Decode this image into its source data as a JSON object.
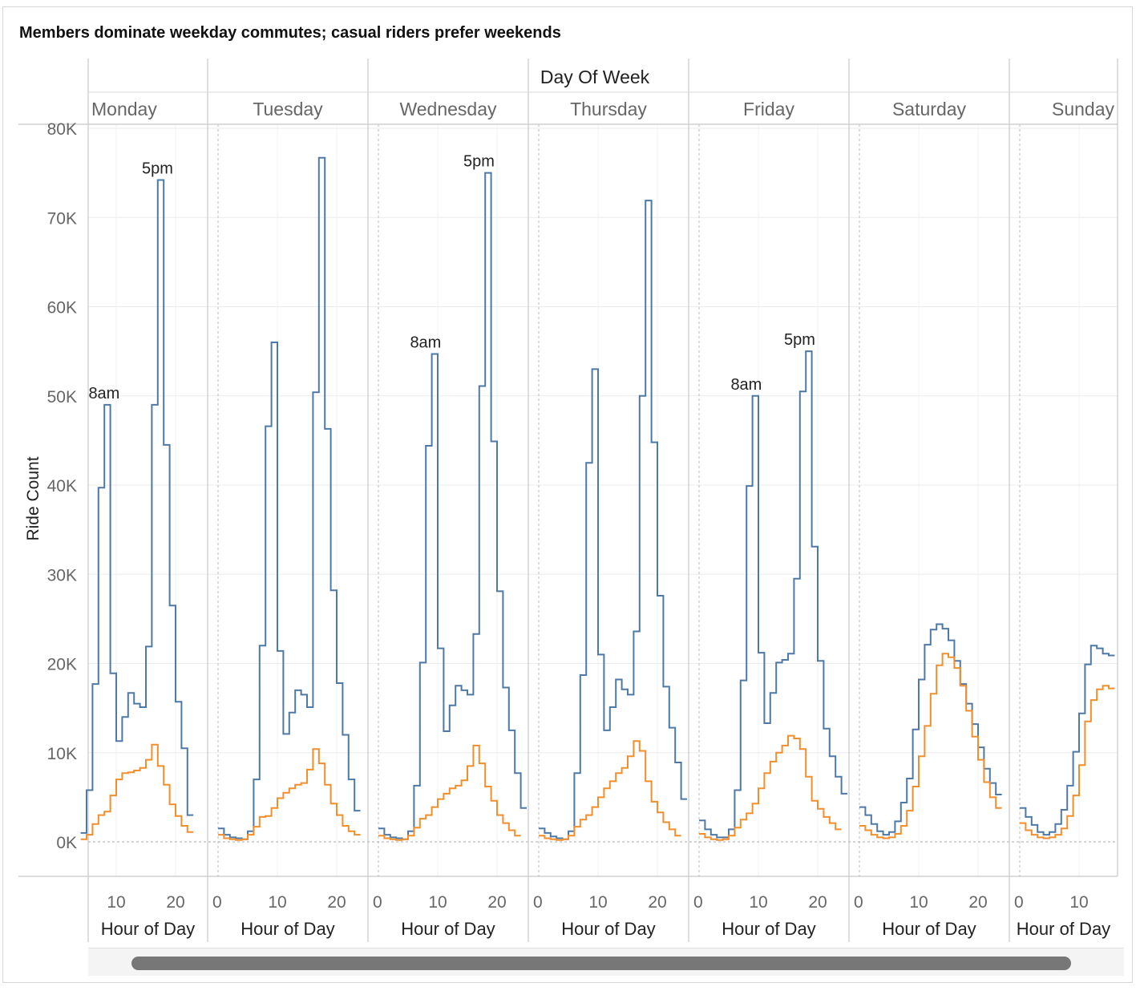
{
  "title": "Members dominate weekday commutes; casual riders prefer weekends",
  "chart_data": {
    "type": "line",
    "column_header": "Day Of Week",
    "panels": [
      "Monday",
      "Tuesday",
      "Wednesday",
      "Thursday",
      "Friday",
      "Saturday",
      "Sunday"
    ],
    "x_label": "Hour of Day",
    "y_label": "Ride Count",
    "y_ticks": [
      "0K",
      "10K",
      "20K",
      "30K",
      "40K",
      "50K",
      "60K",
      "70K",
      "80K"
    ],
    "x_ticks": [
      [
        "10",
        "20"
      ],
      [
        "0",
        "10",
        "20"
      ],
      [
        "0",
        "10",
        "20"
      ],
      [
        "0",
        "10",
        "20"
      ],
      [
        "0",
        "10",
        "20"
      ],
      [
        "0",
        "10",
        "20"
      ],
      [
        "0",
        "10"
      ]
    ],
    "ylim": [
      0,
      80000
    ],
    "colors": {
      "member": "#4e79a7",
      "casual": "#f28e2b"
    },
    "series": [
      {
        "values": [
          [
            1000,
            5800,
            17700,
            39700,
            49000,
            18900,
            11300,
            14000,
            16700,
            15500,
            15100,
            21900,
            49000,
            74200,
            44500,
            26500,
            15700,
            10500,
            3000
          ],
          [
            1500,
            800,
            500,
            400,
            300,
            1200,
            7000,
            22000,
            46600,
            56000,
            21400,
            12100,
            14500,
            17000,
            16500,
            15100,
            50400,
            76700,
            46300,
            28200,
            17800,
            12000,
            7000,
            3500
          ],
          [
            1500,
            800,
            500,
            400,
            300,
            1200,
            6300,
            20100,
            44400,
            54700,
            21700,
            12400,
            15300,
            17500,
            17000,
            16500,
            23300,
            51100,
            75000,
            44900,
            28100,
            17300,
            12500,
            7700,
            3800
          ],
          [
            1500,
            1000,
            600,
            400,
            300,
            1200,
            7700,
            18700,
            42500,
            53000,
            21000,
            12500,
            15100,
            18200,
            17100,
            16500,
            23600,
            50000,
            71900,
            44800,
            27600,
            17400,
            12800,
            8900,
            4800
          ],
          [
            2400,
            1400,
            800,
            500,
            500,
            1400,
            5800,
            18100,
            39900,
            50000,
            21200,
            13300,
            16700,
            20100,
            20400,
            21100,
            29500,
            50500,
            55000,
            33100,
            20300,
            12700,
            9600,
            7300,
            5400
          ],
          [
            3900,
            3000,
            2000,
            1200,
            800,
            1100,
            2300,
            4400,
            7100,
            12600,
            18200,
            22100,
            23800,
            24400,
            23900,
            22600,
            20300,
            17700,
            15500,
            13200,
            10600,
            8200,
            6600,
            5300
          ],
          [
            3800,
            2800,
            1900,
            1100,
            800,
            1100,
            2000,
            3600,
            6300,
            10100,
            14400,
            19900,
            22000,
            21700,
            21100,
            20900
          ]
        ]
      },
      {
        "values": [
          [
            300,
            800,
            2000,
            3000,
            3400,
            5200,
            7000,
            7700,
            7800,
            8000,
            8300,
            9200,
            10900,
            8500,
            6400,
            4200,
            2900,
            1800,
            1100
          ],
          [
            800,
            400,
            300,
            200,
            300,
            800,
            1700,
            2800,
            2900,
            3800,
            4900,
            5500,
            6000,
            6400,
            6600,
            8100,
            10400,
            8800,
            6400,
            4300,
            3000,
            1800,
            1200,
            800
          ],
          [
            700,
            400,
            300,
            200,
            300,
            700,
            1600,
            2600,
            3000,
            3900,
            4800,
            5400,
            6000,
            6300,
            6900,
            8500,
            10800,
            8800,
            6200,
            4600,
            3000,
            2100,
            1300,
            700
          ],
          [
            700,
            400,
            300,
            200,
            300,
            700,
            1700,
            2500,
            3000,
            3900,
            5000,
            6000,
            6800,
            7700,
            8300,
            9600,
            11300,
            10200,
            6800,
            4500,
            3300,
            2200,
            1400,
            700
          ],
          [
            900,
            500,
            300,
            200,
            300,
            700,
            1600,
            2500,
            3200,
            4300,
            6000,
            7700,
            9000,
            10000,
            10800,
            11900,
            11600,
            10400,
            7300,
            4600,
            3700,
            2800,
            2100,
            1400
          ],
          [
            1800,
            1300,
            800,
            500,
            400,
            500,
            900,
            1800,
            3500,
            6200,
            9600,
            13000,
            16600,
            19800,
            21100,
            20700,
            19500,
            17500,
            14700,
            11800,
            9200,
            6700,
            5000,
            3800
          ],
          [
            2100,
            1300,
            800,
            500,
            400,
            500,
            800,
            1500,
            2900,
            5200,
            8600,
            13500,
            15900,
            17100,
            17500,
            17200
          ]
        ]
      }
    ],
    "annotations": [
      {
        "panel": 0,
        "text": "8am"
      },
      {
        "panel": 0,
        "text": "5pm"
      },
      {
        "panel": 2,
        "text": "8am"
      },
      {
        "panel": 2,
        "text": "5pm"
      },
      {
        "panel": 4,
        "text": "8am"
      },
      {
        "panel": 4,
        "text": "5pm"
      }
    ],
    "annotation_points": [
      {
        "panel": 0,
        "hour": 8,
        "value": 49000
      },
      {
        "panel": 0,
        "hour": 17,
        "value": 74200
      },
      {
        "panel": 2,
        "hour": 8,
        "value": 54700
      },
      {
        "panel": 2,
        "hour": 17,
        "value": 75000
      },
      {
        "panel": 4,
        "hour": 8,
        "value": 50000
      },
      {
        "panel": 4,
        "hour": 17,
        "value": 55000
      }
    ],
    "grid": true,
    "legend": "none"
  }
}
